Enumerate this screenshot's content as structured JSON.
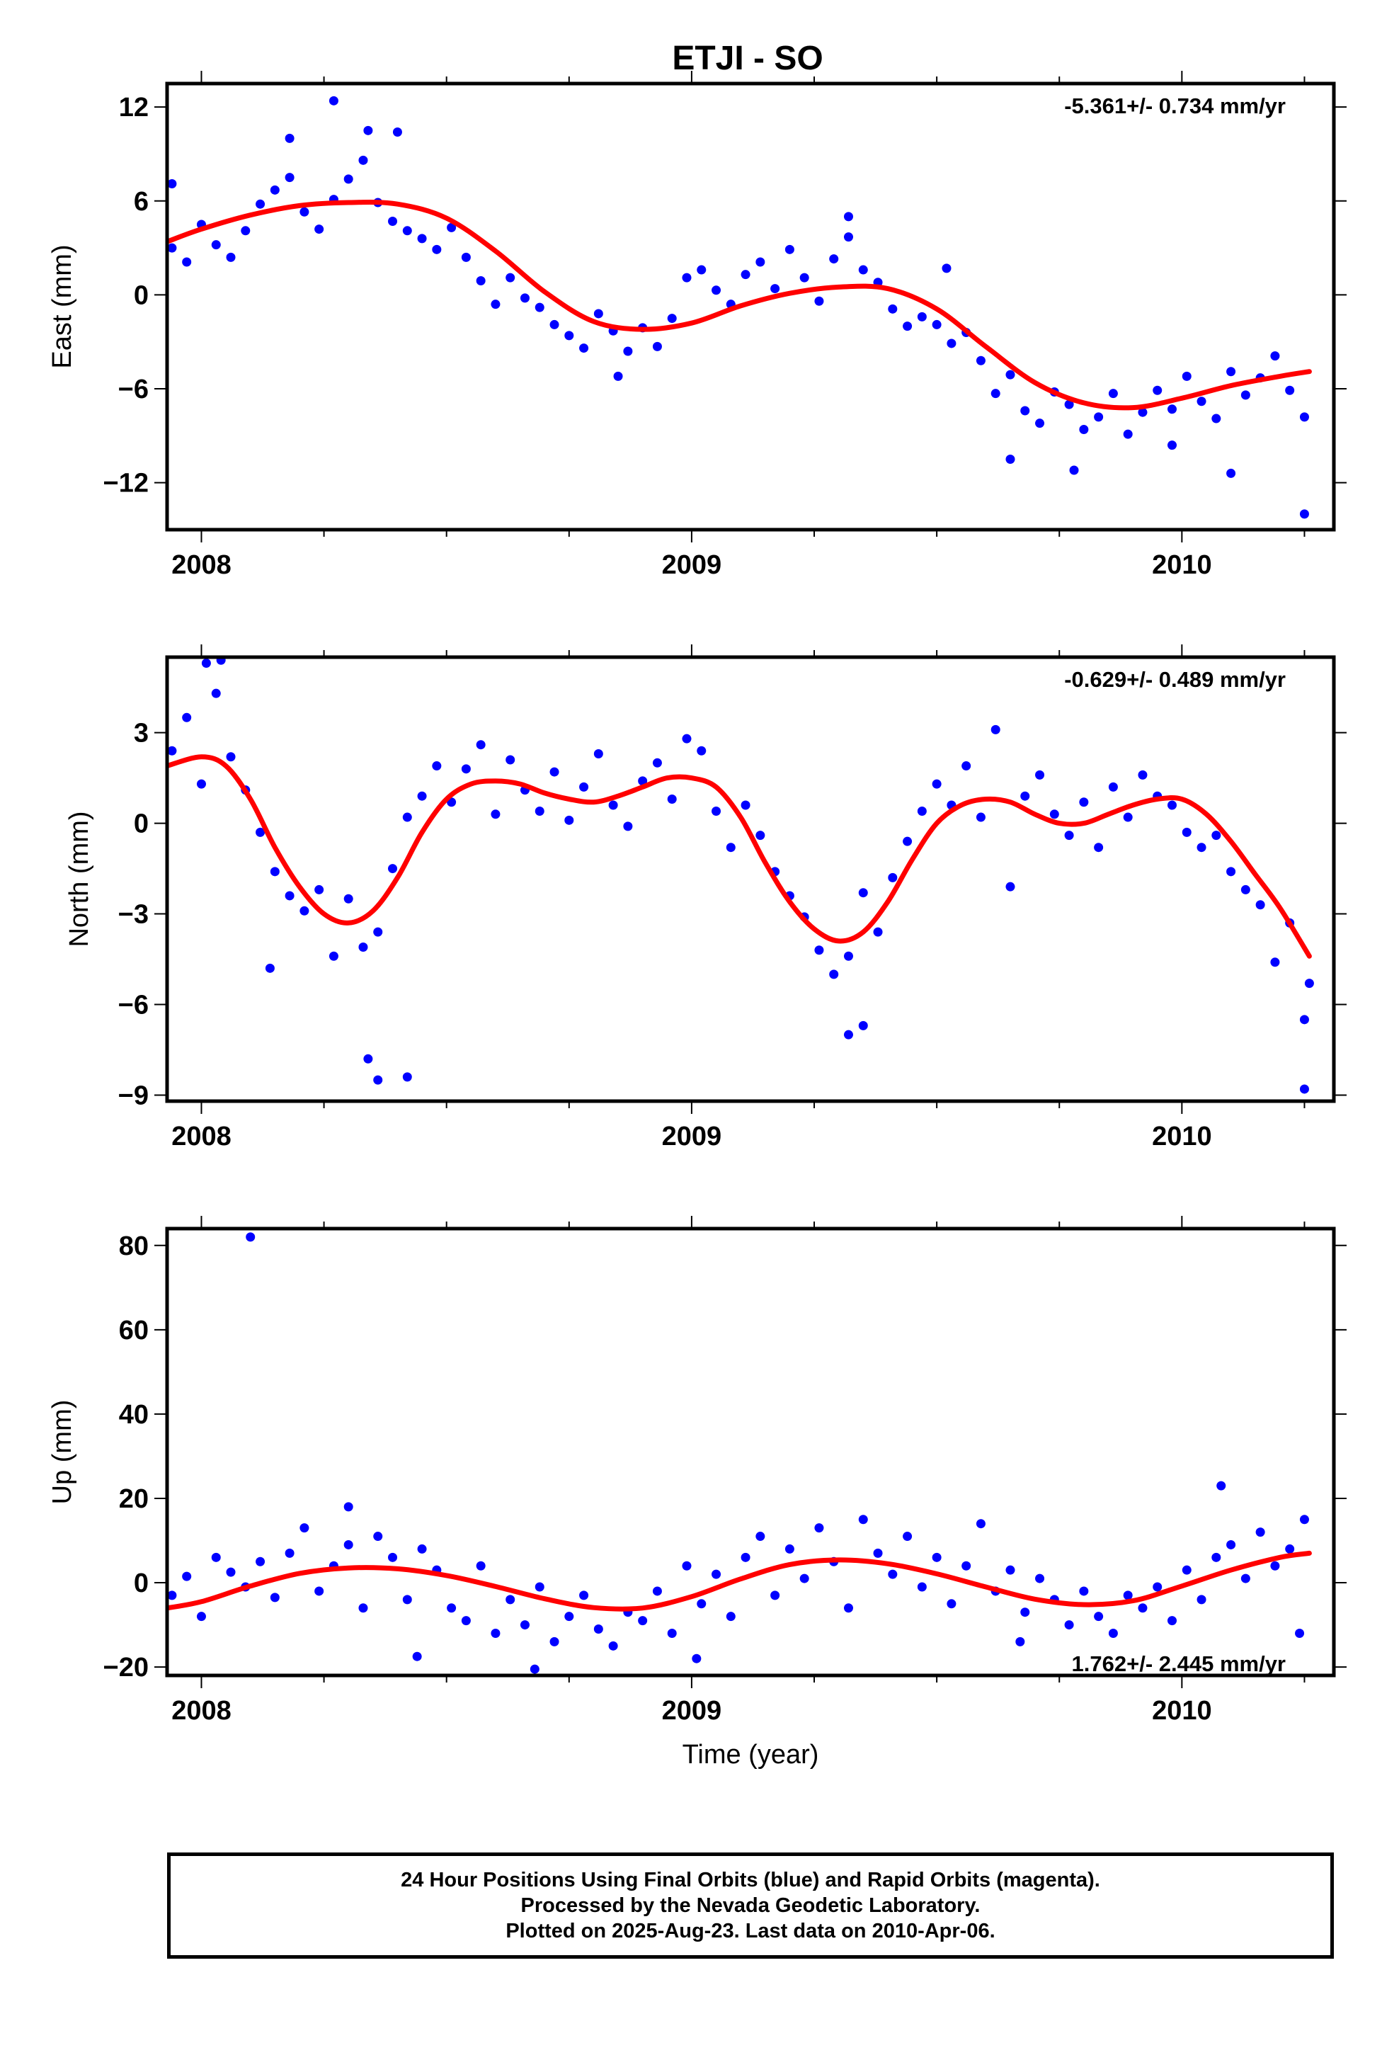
{
  "chart_data": [
    {
      "type": "scatter",
      "title": "ETJI - SO",
      "ylabel": "East (mm)",
      "xlabel": "",
      "annotation": "-5.361+/- 0.734 mm/yr",
      "xlim": [
        2007.93,
        2010.31
      ],
      "ylim": [
        -15,
        13.5
      ],
      "yticks": [
        12,
        6,
        0,
        -6,
        -12
      ],
      "ytick_labels": [
        "12",
        "6",
        "0",
        "−6",
        "−12"
      ],
      "xticks": [
        2008,
        2009,
        2010
      ],
      "xtick_labels": [
        "2008",
        "2009",
        "2010"
      ],
      "grid": false,
      "legend": "none",
      "colors": {
        "points": "#0000ff",
        "fit": "#ff0000"
      },
      "fit": {
        "x": [
          2007.93,
          2008.0,
          2008.1,
          2008.2,
          2008.3,
          2008.4,
          2008.5,
          2008.6,
          2008.7,
          2008.8,
          2008.9,
          2009.0,
          2009.1,
          2009.2,
          2009.3,
          2009.4,
          2009.5,
          2009.6,
          2009.7,
          2009.8,
          2009.9,
          2010.0,
          2010.1,
          2010.2,
          2010.26
        ],
        "y": [
          3.4,
          4.2,
          5.1,
          5.7,
          5.9,
          5.8,
          4.9,
          2.8,
          0.2,
          -1.7,
          -2.2,
          -1.8,
          -0.7,
          0.1,
          0.5,
          0.4,
          -0.9,
          -3.3,
          -5.6,
          -6.9,
          -7.2,
          -6.6,
          -5.8,
          -5.2,
          -4.9
        ]
      },
      "points": {
        "x": [
          2007.94,
          2007.97,
          2008.0,
          2008.03,
          2008.06,
          2008.09,
          2008.12,
          2008.15,
          2008.18,
          2008.21,
          2008.24,
          2008.27,
          2008.3,
          2008.33,
          2008.36,
          2008.39,
          2008.42,
          2008.45,
          2008.48,
          2008.51,
          2008.54,
          2008.57,
          2008.6,
          2008.63,
          2008.66,
          2008.69,
          2008.72,
          2008.75,
          2008.78,
          2008.81,
          2008.84,
          2008.87,
          2008.9,
          2008.93,
          2008.96,
          2008.99,
          2009.02,
          2009.05,
          2009.08,
          2009.11,
          2009.14,
          2009.17,
          2009.2,
          2009.23,
          2009.26,
          2009.29,
          2009.32,
          2009.35,
          2009.38,
          2009.41,
          2009.44,
          2009.47,
          2009.5,
          2009.53,
          2009.56,
          2009.59,
          2009.62,
          2009.65,
          2009.68,
          2009.71,
          2009.74,
          2009.77,
          2009.8,
          2009.83,
          2009.86,
          2009.89,
          2009.92,
          2009.95,
          2009.98,
          2010.01,
          2010.04,
          2010.07,
          2010.1,
          2010.13,
          2010.16,
          2010.19,
          2010.22,
          2010.25,
          2008.27,
          2007.94,
          2008.18,
          2008.34,
          2008.4,
          2009.32,
          2009.52,
          2009.65,
          2009.98,
          2010.1,
          2010.25,
          2009.78,
          2008.85
        ],
        "y": [
          3.0,
          2.1,
          4.5,
          3.2,
          2.4,
          4.1,
          5.8,
          6.7,
          7.5,
          5.3,
          4.2,
          6.1,
          7.4,
          8.6,
          5.9,
          4.7,
          4.1,
          3.6,
          2.9,
          4.3,
          2.4,
          0.9,
          -0.6,
          1.1,
          -0.2,
          -0.8,
          -1.9,
          -2.6,
          -3.4,
          -1.2,
          -2.3,
          -3.6,
          -2.1,
          -3.3,
          -1.5,
          1.1,
          1.6,
          0.3,
          -0.6,
          1.3,
          2.1,
          0.4,
          2.9,
          1.1,
          -0.4,
          2.3,
          3.7,
          1.6,
          0.8,
          -0.9,
          -2.0,
          -1.4,
          -1.9,
          -3.1,
          -2.4,
          -4.2,
          -6.3,
          -5.1,
          -7.4,
          -8.2,
          -6.2,
          -7.0,
          -8.6,
          -7.8,
          -6.3,
          -8.9,
          -7.5,
          -6.1,
          -7.3,
          -5.2,
          -6.8,
          -7.9,
          -4.9,
          -6.4,
          -5.3,
          -3.9,
          -6.1,
          -7.8,
          12.4,
          7.1,
          10.0,
          10.5,
          10.4,
          5.0,
          1.7,
          -10.5,
          -9.6,
          -11.4,
          -14.0,
          -11.2,
          -5.2
        ]
      }
    },
    {
      "type": "scatter",
      "title": "",
      "ylabel": "North (mm)",
      "xlabel": "",
      "annotation": "-0.629+/- 0.489 mm/yr",
      "xlim": [
        2007.93,
        2010.31
      ],
      "ylim": [
        -9.2,
        5.5
      ],
      "yticks": [
        3,
        0,
        -3,
        -6,
        -9
      ],
      "ytick_labels": [
        "3",
        "0",
        "−3",
        "−6",
        "−9"
      ],
      "xticks": [
        2008,
        2009,
        2010
      ],
      "xtick_labels": [
        "2008",
        "2009",
        "2010"
      ],
      "grid": false,
      "legend": "none",
      "colors": {
        "points": "#0000ff",
        "fit": "#ff0000"
      },
      "fit": {
        "x": [
          2007.93,
          2008.0,
          2008.05,
          2008.1,
          2008.15,
          2008.2,
          2008.25,
          2008.3,
          2008.35,
          2008.4,
          2008.45,
          2008.5,
          2008.55,
          2008.6,
          2008.65,
          2008.7,
          2008.75,
          2008.8,
          2008.85,
          2008.9,
          2008.95,
          2009.0,
          2009.05,
          2009.1,
          2009.15,
          2009.2,
          2009.25,
          2009.3,
          2009.35,
          2009.4,
          2009.45,
          2009.5,
          2009.55,
          2009.6,
          2009.65,
          2009.7,
          2009.75,
          2009.8,
          2009.85,
          2009.9,
          2009.95,
          2010.0,
          2010.05,
          2010.1,
          2010.15,
          2010.2,
          2010.26
        ],
        "y": [
          1.9,
          2.2,
          1.9,
          0.8,
          -0.8,
          -2.1,
          -3.0,
          -3.3,
          -2.9,
          -1.8,
          -0.3,
          0.8,
          1.3,
          1.4,
          1.3,
          1.0,
          0.8,
          0.7,
          0.9,
          1.2,
          1.5,
          1.5,
          1.2,
          0.2,
          -1.3,
          -2.6,
          -3.5,
          -3.9,
          -3.6,
          -2.6,
          -1.2,
          0.0,
          0.6,
          0.8,
          0.7,
          0.3,
          0.0,
          0.0,
          0.3,
          0.6,
          0.8,
          0.8,
          0.3,
          -0.6,
          -1.7,
          -2.8,
          -4.4
        ]
      },
      "points": {
        "x": [
          2007.94,
          2007.97,
          2008.0,
          2008.03,
          2008.06,
          2008.09,
          2008.12,
          2008.15,
          2008.18,
          2008.21,
          2008.24,
          2008.27,
          2008.3,
          2008.33,
          2008.36,
          2008.39,
          2008.42,
          2008.45,
          2008.48,
          2008.51,
          2008.54,
          2008.57,
          2008.6,
          2008.63,
          2008.66,
          2008.69,
          2008.72,
          2008.75,
          2008.78,
          2008.81,
          2008.84,
          2008.87,
          2008.9,
          2008.93,
          2008.96,
          2008.99,
          2009.02,
          2009.05,
          2009.08,
          2009.11,
          2009.14,
          2009.17,
          2009.2,
          2009.23,
          2009.26,
          2009.29,
          2009.32,
          2009.35,
          2009.38,
          2009.41,
          2009.44,
          2009.47,
          2009.5,
          2009.53,
          2009.56,
          2009.59,
          2009.62,
          2009.65,
          2009.68,
          2009.71,
          2009.74,
          2009.77,
          2009.8,
          2009.83,
          2009.86,
          2009.89,
          2009.92,
          2009.95,
          2009.98,
          2010.01,
          2010.04,
          2010.07,
          2010.1,
          2010.13,
          2010.16,
          2010.19,
          2010.22,
          2010.25,
          2008.01,
          2008.04,
          2008.34,
          2008.36,
          2008.42,
          2009.32,
          2009.35,
          2010.25,
          2010.26,
          2008.14
        ],
        "y": [
          2.4,
          3.5,
          1.3,
          4.3,
          2.2,
          1.1,
          -0.3,
          -1.6,
          -2.4,
          -2.9,
          -2.2,
          -4.4,
          -2.5,
          -4.1,
          -3.6,
          -1.5,
          0.2,
          0.9,
          1.9,
          0.7,
          1.8,
          2.6,
          0.3,
          2.1,
          1.1,
          0.4,
          1.7,
          0.1,
          1.2,
          2.3,
          0.6,
          -0.1,
          1.4,
          2.0,
          0.8,
          2.8,
          2.4,
          0.4,
          -0.8,
          0.6,
          -0.4,
          -1.6,
          -2.4,
          -3.1,
          -4.2,
          -5.0,
          -4.4,
          -2.3,
          -3.6,
          -1.8,
          -0.6,
          0.4,
          1.3,
          0.6,
          1.9,
          0.2,
          3.1,
          -2.1,
          0.9,
          1.6,
          0.3,
          -0.4,
          0.7,
          -0.8,
          1.2,
          0.2,
          1.6,
          0.9,
          0.6,
          -0.3,
          -0.8,
          -0.4,
          -1.6,
          -2.2,
          -2.7,
          -4.6,
          -3.3,
          -6.5,
          5.3,
          5.4,
          -7.8,
          -8.5,
          -8.4,
          -7.0,
          -6.7,
          -8.8,
          -5.3,
          -4.8
        ]
      }
    },
    {
      "type": "scatter",
      "title": "",
      "ylabel": "Up (mm)",
      "xlabel": "Time (year)",
      "annotation": "1.762+/- 2.445 mm/yr",
      "xlim": [
        2007.93,
        2010.31
      ],
      "ylim": [
        -22,
        84
      ],
      "yticks": [
        80,
        60,
        40,
        20,
        0,
        -20
      ],
      "ytick_labels": [
        "80",
        "60",
        "40",
        "20",
        "0",
        "−20"
      ],
      "xticks": [
        2008,
        2009,
        2010
      ],
      "xtick_labels": [
        "2008",
        "2009",
        "2010"
      ],
      "grid": false,
      "legend": "none",
      "colors": {
        "points": "#0000ff",
        "fit": "#ff0000"
      },
      "fit": {
        "x": [
          2007.93,
          2008.0,
          2008.1,
          2008.2,
          2008.3,
          2008.4,
          2008.5,
          2008.6,
          2008.7,
          2008.8,
          2008.9,
          2009.0,
          2009.1,
          2009.2,
          2009.3,
          2009.4,
          2009.5,
          2009.6,
          2009.7,
          2009.8,
          2009.9,
          2010.0,
          2010.1,
          2010.2,
          2010.26
        ],
        "y": [
          -6.0,
          -4.5,
          -0.8,
          2.2,
          3.5,
          3.3,
          1.7,
          -0.9,
          -3.8,
          -5.9,
          -6.0,
          -3.3,
          0.9,
          4.3,
          5.4,
          4.5,
          2.1,
          -1.0,
          -3.9,
          -5.2,
          -4.3,
          -0.8,
          3.0,
          6.0,
          7.0
        ]
      },
      "points": {
        "x": [
          2007.94,
          2007.97,
          2008.0,
          2008.03,
          2008.06,
          2008.09,
          2008.12,
          2008.15,
          2008.18,
          2008.21,
          2008.24,
          2008.27,
          2008.3,
          2008.33,
          2008.36,
          2008.39,
          2008.42,
          2008.45,
          2008.48,
          2008.51,
          2008.54,
          2008.57,
          2008.6,
          2008.63,
          2008.66,
          2008.69,
          2008.72,
          2008.75,
          2008.78,
          2008.81,
          2008.84,
          2008.87,
          2008.9,
          2008.93,
          2008.96,
          2008.99,
          2009.02,
          2009.05,
          2009.08,
          2009.11,
          2009.14,
          2009.17,
          2009.2,
          2009.23,
          2009.26,
          2009.29,
          2009.32,
          2009.35,
          2009.38,
          2009.41,
          2009.44,
          2009.47,
          2009.5,
          2009.53,
          2009.56,
          2009.59,
          2009.62,
          2009.65,
          2009.68,
          2009.71,
          2009.74,
          2009.77,
          2009.8,
          2009.83,
          2009.86,
          2009.89,
          2009.92,
          2009.95,
          2009.98,
          2010.01,
          2010.04,
          2010.07,
          2010.1,
          2010.13,
          2010.16,
          2010.19,
          2010.22,
          2010.25,
          2008.1,
          2008.44,
          2008.68,
          2009.01,
          2010.08,
          2010.24,
          2009.67,
          2008.3
        ],
        "y": [
          -3.0,
          1.5,
          -8.0,
          6.0,
          2.5,
          -1.0,
          5.0,
          -3.5,
          7.0,
          13.0,
          -2.0,
          4.0,
          9.0,
          -6.0,
          11.0,
          6.0,
          -4.0,
          8.0,
          3.0,
          -6.0,
          -9.0,
          4.0,
          -12.0,
          -4.0,
          -10.0,
          -1.0,
          -14.0,
          -8.0,
          -3.0,
          -11.0,
          -15.0,
          -7.0,
          -9.0,
          -2.0,
          -12.0,
          4.0,
          -5.0,
          2.0,
          -8.0,
          6.0,
          11.0,
          -3.0,
          8.0,
          1.0,
          13.0,
          5.0,
          -6.0,
          15.0,
          7.0,
          2.0,
          11.0,
          -1.0,
          6.0,
          -5.0,
          4.0,
          14.0,
          -2.0,
          3.0,
          -7.0,
          1.0,
          -4.0,
          -10.0,
          -2.0,
          -8.0,
          -12.0,
          -3.0,
          -6.0,
          -1.0,
          -9.0,
          3.0,
          -4.0,
          6.0,
          9.0,
          1.0,
          12.0,
          4.0,
          8.0,
          15.0,
          82.0,
          -17.5,
          -20.5,
          -18.0,
          23.0,
          -12.0,
          -14.0,
          18.0
        ]
      }
    }
  ],
  "caption": {
    "line1": "24 Hour Positions Using Final Orbits (blue) and Rapid Orbits (magenta).",
    "line2": "Processed by the Nevada Geodetic Laboratory.",
    "line3": "Plotted on 2025-Aug-23. Last data on 2010-Apr-06."
  }
}
